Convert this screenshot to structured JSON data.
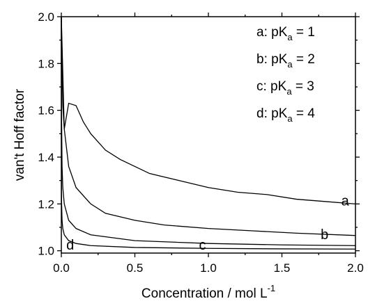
{
  "chart_data": {
    "type": "line",
    "xlabel": "Concentration / mol L",
    "xlabel_superscript": "-1",
    "ylabel": "van't Hoff factor",
    "xlim": [
      0.0,
      2.0
    ],
    "ylim": [
      0.99,
      2.0
    ],
    "xticks": [
      0.0,
      0.5,
      1.0,
      1.5,
      2.0
    ],
    "xtick_labels": [
      "0.0",
      "0.5",
      "1.0",
      "1.5",
      "2.0"
    ],
    "yticks": [
      1.0,
      1.2,
      1.4,
      1.6,
      1.8,
      2.0
    ],
    "ytick_labels": [
      "1.0",
      "1.2",
      "1.4",
      "1.6",
      "1.8",
      "2.0"
    ],
    "grid": false,
    "legend_position": "top-right",
    "series": [
      {
        "id": "a",
        "curve_label": "a",
        "legend_prefix": "a: pK",
        "legend_sub": "a",
        "legend_suffix": " = 1",
        "pKa": 1,
        "x": [
          0.0,
          0.02,
          0.05,
          0.1,
          0.15,
          0.2,
          0.3,
          0.4,
          0.5,
          0.6,
          0.8,
          1.0,
          1.2,
          1.4,
          1.6,
          1.8,
          2.0
        ],
        "y": [
          2.0,
          1.52,
          1.63,
          1.62,
          1.55,
          1.5,
          1.43,
          1.39,
          1.36,
          1.33,
          1.3,
          1.27,
          1.25,
          1.24,
          1.22,
          1.21,
          1.2
        ]
      },
      {
        "id": "b",
        "curve_label": "b",
        "legend_prefix": "b: pK",
        "legend_sub": "a",
        "legend_suffix": " = 2",
        "pKa": 2,
        "x": [
          0.0,
          0.01,
          0.02,
          0.05,
          0.1,
          0.2,
          0.3,
          0.5,
          0.7,
          1.0,
          1.3,
          1.6,
          2.0
        ],
        "y": [
          2.0,
          1.62,
          1.52,
          1.36,
          1.27,
          1.2,
          1.16,
          1.13,
          1.11,
          1.095,
          1.085,
          1.075,
          1.065
        ]
      },
      {
        "id": "c",
        "curve_label": "c",
        "legend_prefix": "c: pK",
        "legend_sub": "a",
        "legend_suffix": " = 3",
        "pKa": 3,
        "x": [
          0.0,
          0.001,
          0.005,
          0.01,
          0.02,
          0.05,
          0.1,
          0.2,
          0.5,
          1.0,
          1.5,
          2.0
        ],
        "y": [
          2.0,
          1.62,
          1.36,
          1.27,
          1.2,
          1.13,
          1.095,
          1.068,
          1.043,
          1.031,
          1.025,
          1.022
        ]
      },
      {
        "id": "d",
        "curve_label": "d",
        "legend_prefix": "d: pK",
        "legend_sub": "a",
        "legend_suffix": " = 4",
        "pKa": 4,
        "x": [
          0.0,
          0.0002,
          0.001,
          0.002,
          0.005,
          0.01,
          0.02,
          0.05,
          0.1,
          0.2,
          0.5,
          1.0,
          1.5,
          2.0
        ],
        "y": [
          2.0,
          1.5,
          1.27,
          1.2,
          1.13,
          1.095,
          1.068,
          1.043,
          1.031,
          1.022,
          1.014,
          1.01,
          1.008,
          1.007
        ]
      }
    ]
  }
}
